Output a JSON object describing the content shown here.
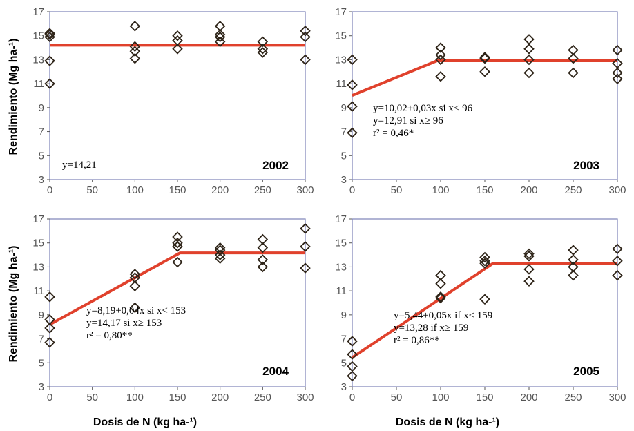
{
  "chart_data": [
    {
      "type": "scatter",
      "year_label": "2002",
      "xlim": [
        0,
        300
      ],
      "ylim": [
        3,
        17
      ],
      "xticks": [
        "0",
        "50",
        "100",
        "150",
        "200",
        "250",
        "300"
      ],
      "yticks": [
        "3",
        "5",
        "7",
        "9",
        "11",
        "13",
        "15",
        "17"
      ],
      "equations": [
        "y=14,21"
      ],
      "fit": [
        [
          0,
          14.21
        ],
        [
          300,
          14.21
        ]
      ],
      "points": [
        [
          0,
          11.0
        ],
        [
          0,
          12.9
        ],
        [
          0,
          14.9
        ],
        [
          0,
          15.1
        ],
        [
          0,
          15.2
        ],
        [
          100,
          13.1
        ],
        [
          100,
          13.7
        ],
        [
          100,
          14.1
        ],
        [
          100,
          15.8
        ],
        [
          150,
          13.9
        ],
        [
          150,
          14.6
        ],
        [
          150,
          15.0
        ],
        [
          200,
          14.5
        ],
        [
          200,
          14.9
        ],
        [
          200,
          15.1
        ],
        [
          200,
          15.8
        ],
        [
          250,
          13.6
        ],
        [
          250,
          13.9
        ],
        [
          250,
          14.5
        ],
        [
          300,
          13.0
        ],
        [
          300,
          14.9
        ],
        [
          300,
          15.4
        ]
      ]
    },
    {
      "type": "scatter",
      "year_label": "2003",
      "xlim": [
        0,
        300
      ],
      "ylim": [
        3,
        17
      ],
      "xticks": [
        "0",
        "50",
        "100",
        "150",
        "200",
        "250",
        "300"
      ],
      "yticks": [
        "3",
        "5",
        "7",
        "9",
        "11",
        "13",
        "15",
        "17"
      ],
      "equations": [
        "y=10,02+0,03x si x< 96",
        "y=12,91 si x≥ 96",
        "r² = 0,46*"
      ],
      "fit": [
        [
          0,
          10.02
        ],
        [
          96,
          12.91
        ],
        [
          300,
          12.91
        ]
      ],
      "points": [
        [
          0,
          6.9
        ],
        [
          0,
          9.1
        ],
        [
          0,
          10.9
        ],
        [
          0,
          13.0
        ],
        [
          100,
          11.6
        ],
        [
          100,
          13.0
        ],
        [
          100,
          13.4
        ],
        [
          100,
          14.0
        ],
        [
          150,
          12.0
        ],
        [
          150,
          13.1
        ],
        [
          150,
          13.2
        ],
        [
          200,
          11.9
        ],
        [
          200,
          13.0
        ],
        [
          200,
          13.9
        ],
        [
          200,
          14.7
        ],
        [
          250,
          11.9
        ],
        [
          250,
          13.1
        ],
        [
          250,
          13.8
        ],
        [
          300,
          11.4
        ],
        [
          300,
          11.9
        ],
        [
          300,
          12.7
        ],
        [
          300,
          13.8
        ]
      ]
    },
    {
      "type": "scatter",
      "year_label": "2004",
      "xlim": [
        0,
        300
      ],
      "ylim": [
        3,
        17
      ],
      "xticks": [
        "0",
        "50",
        "100",
        "150",
        "200",
        "250",
        "300"
      ],
      "yticks": [
        "3",
        "5",
        "7",
        "9",
        "11",
        "13",
        "15",
        "17"
      ],
      "ylabel": "Rendimiento (Mg ha-¹)",
      "xlabel": "Dosis de N (kg ha-¹)",
      "equations": [
        "y=8,19+0,04x si  x< 153",
        "y=14,17 si x≥ 153",
        "r² = 0,80**"
      ],
      "fit": [
        [
          0,
          8.19
        ],
        [
          153,
          14.17
        ],
        [
          300,
          14.17
        ]
      ],
      "points": [
        [
          0,
          6.7
        ],
        [
          0,
          7.9
        ],
        [
          0,
          8.6
        ],
        [
          0,
          10.5
        ],
        [
          100,
          9.6
        ],
        [
          100,
          11.4
        ],
        [
          100,
          12.1
        ],
        [
          100,
          12.4
        ],
        [
          150,
          13.4
        ],
        [
          150,
          14.7
        ],
        [
          150,
          15.0
        ],
        [
          150,
          15.5
        ],
        [
          200,
          13.7
        ],
        [
          200,
          14.0
        ],
        [
          200,
          14.4
        ],
        [
          200,
          14.6
        ],
        [
          250,
          13.0
        ],
        [
          250,
          13.6
        ],
        [
          250,
          14.6
        ],
        [
          250,
          15.3
        ],
        [
          300,
          12.9
        ],
        [
          300,
          14.7
        ],
        [
          300,
          16.2
        ]
      ]
    },
    {
      "type": "scatter",
      "year_label": "2005",
      "xlim": [
        0,
        300
      ],
      "ylim": [
        3,
        17
      ],
      "xticks": [
        "0",
        "50",
        "100",
        "150",
        "200",
        "250",
        "300"
      ],
      "yticks": [
        "3",
        "5",
        "7",
        "9",
        "11",
        "13",
        "15",
        "17"
      ],
      "xlabel": "Dosis de N (kg ha-¹)",
      "equations": [
        "y=5,44+0,05x if x< 159",
        "y=13,28 if x≥ 159",
        "r² = 0,86**"
      ],
      "fit": [
        [
          0,
          5.44
        ],
        [
          159,
          13.28
        ],
        [
          300,
          13.28
        ]
      ],
      "points": [
        [
          0,
          3.9
        ],
        [
          0,
          4.7
        ],
        [
          0,
          5.7
        ],
        [
          0,
          6.8
        ],
        [
          100,
          10.4
        ],
        [
          100,
          10.5
        ],
        [
          100,
          11.6
        ],
        [
          100,
          12.3
        ],
        [
          150,
          10.3
        ],
        [
          150,
          13.3
        ],
        [
          150,
          13.5
        ],
        [
          150,
          13.8
        ],
        [
          200,
          11.8
        ],
        [
          200,
          12.8
        ],
        [
          200,
          13.9
        ],
        [
          200,
          14.1
        ],
        [
          250,
          12.3
        ],
        [
          250,
          13.0
        ],
        [
          250,
          13.6
        ],
        [
          250,
          14.4
        ],
        [
          300,
          12.3
        ],
        [
          300,
          13.5
        ],
        [
          300,
          14.5
        ]
      ]
    }
  ],
  "colors": {
    "fit_line": "#e0412c",
    "frame": "#7d82b8",
    "marker": "#2e2418",
    "tick_text": "#555555"
  }
}
